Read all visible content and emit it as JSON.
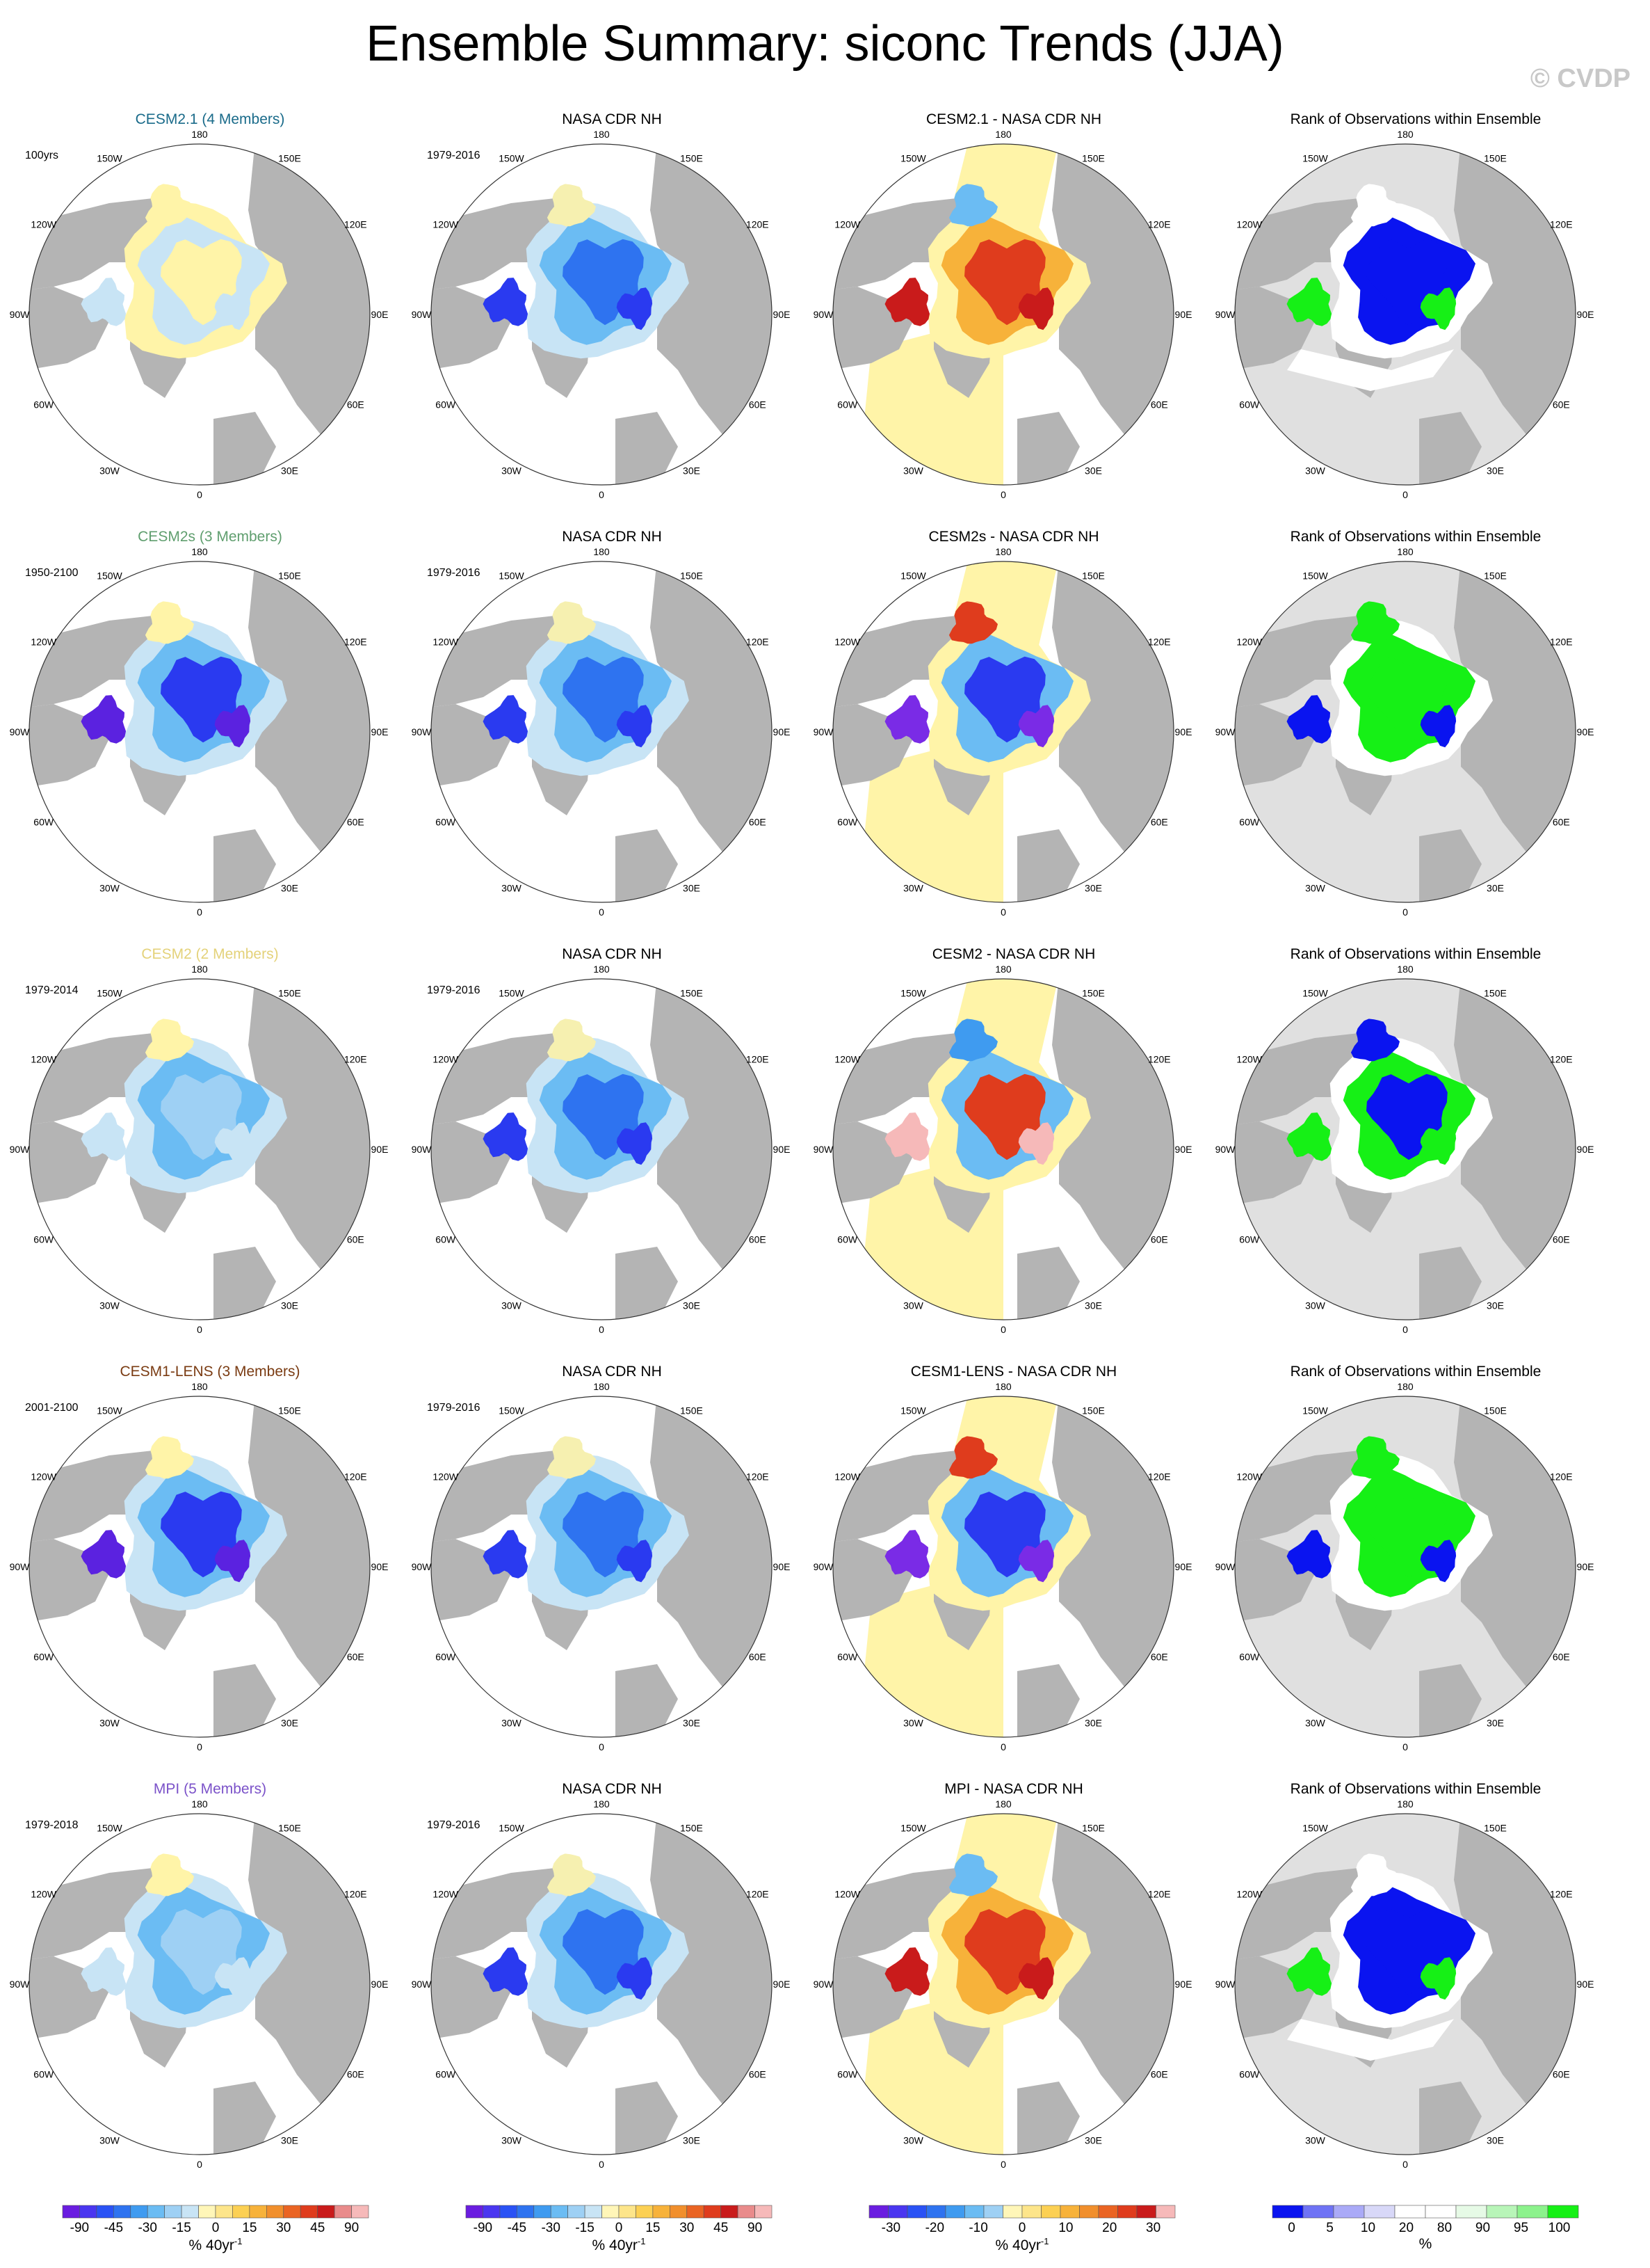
{
  "title": "Ensemble Summary: siconc Trends (JJA)",
  "watermark": "© CVDP",
  "lon_labels": [
    "180",
    "150E",
    "120E",
    "90E",
    "60E",
    "30E",
    "0",
    "30W",
    "60W",
    "90W",
    "120W",
    "150W"
  ],
  "rows": [
    {
      "model": {
        "label": "CESM2.1 (4 Members)",
        "color": "#1a6b8a",
        "period": "100yrs",
        "pattern": "model_weak"
      },
      "obs": {
        "label": "NASA CDR NH",
        "period": "1979-2016",
        "pattern": "obs"
      },
      "diff": {
        "label": "CESM2.1 - NASA CDR NH",
        "pattern": "diff_pos"
      },
      "rank": {
        "label": "Rank of Observations within Ensemble",
        "pattern": "rank_low"
      }
    },
    {
      "model": {
        "label": "CESM2s (3 Members)",
        "color": "#5f9e6e",
        "period": "1950-2100",
        "pattern": "model_strong"
      },
      "obs": {
        "label": "NASA CDR NH",
        "period": "1979-2016",
        "pattern": "obs"
      },
      "diff": {
        "label": "CESM2s - NASA CDR NH",
        "pattern": "diff_neg"
      },
      "rank": {
        "label": "Rank of Observations within Ensemble",
        "pattern": "rank_high"
      }
    },
    {
      "model": {
        "label": "CESM2 (2 Members)",
        "color": "#e4d27a",
        "period": "1979-2014",
        "pattern": "model_mid"
      },
      "obs": {
        "label": "NASA CDR NH",
        "period": "1979-2016",
        "pattern": "obs"
      },
      "diff": {
        "label": "CESM2 - NASA CDR NH",
        "pattern": "diff_mixed"
      },
      "rank": {
        "label": "Rank of Observations within Ensemble",
        "pattern": "rank_mixed"
      }
    },
    {
      "model": {
        "label": "CESM1-LENS (3 Members)",
        "color": "#7a3b12",
        "period": "2001-2100",
        "pattern": "model_strong"
      },
      "obs": {
        "label": "NASA CDR NH",
        "period": "1979-2016",
        "pattern": "obs"
      },
      "diff": {
        "label": "CESM1-LENS - NASA CDR NH",
        "pattern": "diff_neg"
      },
      "rank": {
        "label": "Rank of Observations within Ensemble",
        "pattern": "rank_high"
      }
    },
    {
      "model": {
        "label": "MPI (5 Members)",
        "color": "#7b52c9",
        "period": "1979-2018",
        "pattern": "model_mid"
      },
      "obs": {
        "label": "NASA CDR NH",
        "period": "1979-2016",
        "pattern": "obs"
      },
      "diff": {
        "label": "MPI - NASA CDR NH",
        "pattern": "diff_pos"
      },
      "rank": {
        "label": "Rank of Observations within Ensemble",
        "pattern": "rank_low"
      }
    }
  ],
  "colorbars": [
    {
      "unit": "% 40yr",
      "unit_sup": "-1",
      "ticks": [
        "-90",
        "-45",
        "-30",
        "-15",
        "0",
        "15",
        "30",
        "45",
        "90"
      ],
      "colors": [
        "#6a1de0",
        "#4a36f0",
        "#2a52f5",
        "#2e73f0",
        "#3f9bf0",
        "#6bbcf3",
        "#9ed0f4",
        "#c8e4f5",
        "#fff6b8",
        "#fde58a",
        "#fcd053",
        "#f7b23a",
        "#f18f2c",
        "#ea6423",
        "#df3c1d",
        "#c91b1b",
        "#e98b8b",
        "#f6b9b9"
      ]
    },
    {
      "unit": "% 40yr",
      "unit_sup": "-1",
      "ticks": [
        "-90",
        "-45",
        "-30",
        "-15",
        "0",
        "15",
        "30",
        "45",
        "90"
      ],
      "colors": [
        "#6a1de0",
        "#4a36f0",
        "#2a52f5",
        "#2e73f0",
        "#3f9bf0",
        "#6bbcf3",
        "#9ed0f4",
        "#c8e4f5",
        "#fff6b8",
        "#fde58a",
        "#fcd053",
        "#f7b23a",
        "#f18f2c",
        "#ea6423",
        "#df3c1d",
        "#c91b1b",
        "#e98b8b",
        "#f6b9b9"
      ]
    },
    {
      "unit": "% 40yr",
      "unit_sup": "-1",
      "ticks": [
        "-30",
        "-20",
        "-10",
        "0",
        "10",
        "20",
        "30"
      ],
      "colors": [
        "#6a1de0",
        "#4a36f0",
        "#2a52f5",
        "#2e73f0",
        "#3f9bf0",
        "#6bbcf3",
        "#9ed0f4",
        "#fff6b8",
        "#fde58a",
        "#fcd053",
        "#f7b23a",
        "#f18f2c",
        "#ea6423",
        "#df3c1d",
        "#c91b1b",
        "#f6b9b9"
      ]
    },
    {
      "unit": "%",
      "unit_sup": "",
      "ticks": [
        "0",
        "5",
        "10",
        "20",
        "80",
        "90",
        "95",
        "100"
      ],
      "colors": [
        "#0a14f0",
        "#6f73f5",
        "#aaaaf7",
        "#d8d8f8",
        "#ffffff",
        "#ffffff",
        "#e6fae6",
        "#b8f5b8",
        "#8cf28c",
        "#16f016"
      ]
    }
  ],
  "colors": {
    "land": "#b4b4b4",
    "ocean_outside": "#ffffff",
    "rank_outside": "#e0e0e0",
    "model_weak": "#fff4a8",
    "diff_background": "#fff4a8"
  }
}
